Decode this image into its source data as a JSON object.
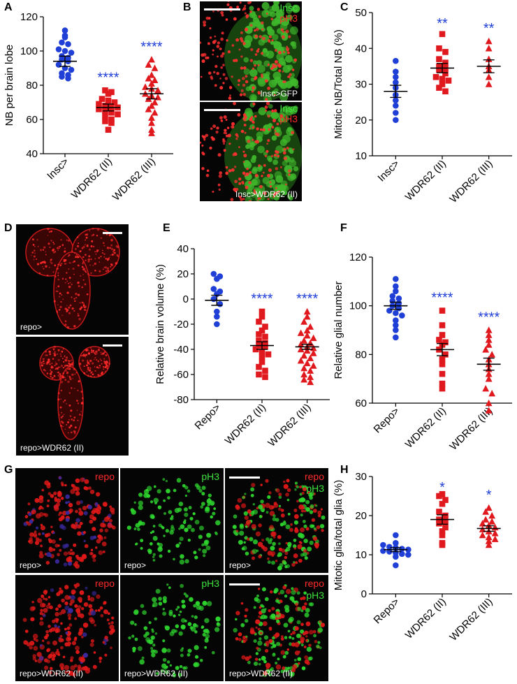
{
  "panel_letters": {
    "A": "A",
    "B": "B",
    "C": "C",
    "D": "D",
    "E": "E",
    "F": "F",
    "G": "G",
    "H": "H"
  },
  "colors": {
    "blue": "#1f3fd6",
    "red": "#e0191e",
    "star": "#1f3fd6",
    "green_label": "#3fe23f",
    "red_label": "#ff2a2a"
  },
  "micro": {
    "B": {
      "top_green": "Insc",
      "top_red": "pH3",
      "top_caption": "Insc>GFP",
      "bottom_green": "Insc",
      "bottom_red": "pH3",
      "bottom_caption": "Insc>WDR62 (II)"
    },
    "D": {
      "top_caption": "repo>",
      "bottom_caption": "repo>WDR62 (II)"
    },
    "G": {
      "row1": [
        {
          "label": "repo",
          "caption": "repo>"
        },
        {
          "label": "pH3",
          "caption": "repo>"
        },
        {
          "label1": "repo",
          "label2": "pH3",
          "caption": "repo>"
        }
      ],
      "row2": [
        {
          "label": "repo",
          "caption": "repo>WDR62 (II)"
        },
        {
          "label": "pH3",
          "caption": "repo>WDR62 (II)"
        },
        {
          "label1": "repo",
          "label2": "pH3",
          "caption": "repo>WDR62 (II)"
        }
      ]
    }
  },
  "chart_data": [
    {
      "id": "A",
      "type": "scatter",
      "ylabel": "NB per brain lobe",
      "ylim": [
        40,
        120
      ],
      "yticks": [
        40,
        60,
        80,
        100,
        120
      ],
      "categories": [
        "Insc>",
        "WDR62 (II)",
        "WDR62 (III)"
      ],
      "series": [
        {
          "name": "Insc>",
          "marker": "circle",
          "color": "blue",
          "mean": 94,
          "sem": 3,
          "sig": "",
          "values": [
            112,
            109,
            108,
            105,
            104,
            101,
            100,
            99,
            97,
            96,
            95,
            94,
            92,
            90,
            89,
            87,
            86,
            85,
            84
          ]
        },
        {
          "name": "WDR62 (II)",
          "marker": "square",
          "color": "red",
          "mean": 67,
          "sem": 2,
          "sig": "****",
          "values": [
            77,
            76,
            75,
            72,
            71,
            70,
            69,
            68,
            67,
            67,
            66,
            65,
            64,
            63,
            62,
            60,
            59,
            58,
            54
          ]
        },
        {
          "name": "WDR62 (III)",
          "marker": "triangle",
          "color": "red",
          "mean": 75,
          "sem": 3,
          "sig": "****",
          "values": [
            95,
            92,
            90,
            86,
            84,
            83,
            81,
            79,
            78,
            77,
            75,
            74,
            73,
            72,
            70,
            68,
            66,
            64,
            61,
            58,
            54,
            52
          ]
        }
      ]
    },
    {
      "id": "C",
      "type": "scatter",
      "ylabel": "Mitotic NB/Total NB (%)",
      "ylim": [
        10,
        50
      ],
      "yticks": [
        10,
        20,
        30,
        40,
        50
      ],
      "categories": [
        "Insc>",
        "WDR62 (II)",
        "WDR62 (III)"
      ],
      "series": [
        {
          "name": "Insc>",
          "marker": "circle",
          "color": "blue",
          "mean": 28,
          "sem": 1.7,
          "sig": "",
          "values": [
            36.5,
            33.5,
            32,
            30.5,
            29,
            27,
            25.5,
            24,
            22,
            20
          ]
        },
        {
          "name": "WDR62 (II)",
          "marker": "square",
          "color": "red",
          "mean": 34.5,
          "sem": 1.3,
          "sig": "**",
          "values": [
            44,
            40,
            39,
            37,
            36,
            35,
            34.5,
            34,
            33,
            32,
            31.5,
            31,
            30,
            29,
            28
          ]
        },
        {
          "name": "WDR62 (III)",
          "marker": "triangle",
          "color": "red",
          "mean": 35,
          "sem": 1.8,
          "sig": "**",
          "values": [
            42,
            40,
            37,
            35,
            34,
            32,
            30
          ]
        }
      ]
    },
    {
      "id": "E",
      "type": "scatter",
      "ylabel": "Relative brain volume (%)",
      "ylim": [
        -80,
        40
      ],
      "yticks": [
        -80,
        -60,
        -40,
        -20,
        0,
        20,
        40
      ],
      "categories": [
        "Repo>",
        "WDR62 (II)",
        "WDR62 (III)"
      ],
      "series": [
        {
          "name": "Repo>",
          "marker": "circle",
          "color": "blue",
          "mean": -1,
          "sem": 4,
          "sig": "",
          "values": [
            20,
            18,
            16,
            8,
            6,
            4,
            0,
            -4,
            -10,
            -14,
            -20
          ]
        },
        {
          "name": "WDR62 (II)",
          "marker": "square",
          "color": "red",
          "mean": -37,
          "sem": 3,
          "sig": "****",
          "values": [
            -10,
            -14,
            -18,
            -22,
            -25,
            -28,
            -30,
            -33,
            -35,
            -37,
            -38,
            -40,
            -42,
            -44,
            -46,
            -50,
            -54,
            -57,
            -60,
            -62
          ]
        },
        {
          "name": "WDR62 (III)",
          "marker": "triangle",
          "color": "red",
          "mean": -38,
          "sem": 2,
          "sig": "****",
          "values": [
            -10,
            -14,
            -18,
            -22,
            -25,
            -27,
            -29,
            -31,
            -33,
            -35,
            -36,
            -38,
            -39,
            -40,
            -41,
            -43,
            -45,
            -47,
            -49,
            -51,
            -53,
            -55,
            -57,
            -60,
            -62,
            -64,
            -66
          ]
        }
      ]
    },
    {
      "id": "F",
      "type": "scatter",
      "ylabel": "Relative glial number",
      "ylim": [
        60,
        120
      ],
      "yticks": [
        60,
        80,
        100,
        120
      ],
      "categories": [
        "Repo>",
        "WDR62 (II)",
        "WDR62 (III)"
      ],
      "series": [
        {
          "name": "Repo>",
          "marker": "circle",
          "color": "blue",
          "mean": 100,
          "sem": 1.5,
          "sig": "",
          "values": [
            111,
            108,
            106,
            104,
            103,
            102,
            101,
            100,
            99,
            98,
            97,
            96,
            94,
            92,
            90,
            87
          ]
        },
        {
          "name": "WDR62 (II)",
          "marker": "square",
          "color": "red",
          "mean": 82,
          "sem": 2.5,
          "sig": "****",
          "values": [
            98,
            92,
            88,
            86,
            85,
            84,
            82,
            80,
            78,
            76,
            72,
            68,
            66
          ]
        },
        {
          "name": "WDR62 (III)",
          "marker": "triangle",
          "color": "red",
          "mean": 76,
          "sem": 2.5,
          "sig": "****",
          "values": [
            90,
            88,
            86,
            84,
            82,
            80,
            78,
            76,
            74,
            72,
            70,
            66,
            64,
            60,
            57
          ]
        }
      ]
    },
    {
      "id": "H",
      "type": "scatter",
      "ylabel": "Mitotic glia/total glia (%)",
      "ylim": [
        0,
        30
      ],
      "yticks": [
        0,
        10,
        20,
        30
      ],
      "categories": [
        "Repo>",
        "WDR62 (II)",
        "WDR62 (III)"
      ],
      "series": [
        {
          "name": "Repo>",
          "marker": "circle",
          "color": "blue",
          "mean": 11.3,
          "sem": 0.5,
          "sig": "",
          "values": [
            15,
            13,
            12.5,
            12,
            11.8,
            11.5,
            11.3,
            11,
            10.8,
            10.5,
            10.2,
            10,
            9.5,
            7.3
          ]
        },
        {
          "name": "WDR62 (II)",
          "marker": "square",
          "color": "red",
          "mean": 19,
          "sem": 1.2,
          "sig": "*",
          "values": [
            25.5,
            25,
            24,
            23,
            21,
            20,
            19,
            18.5,
            18,
            17,
            16,
            15,
            13,
            12.5
          ]
        },
        {
          "name": "WDR62 (III)",
          "marker": "triangle",
          "color": "red",
          "mean": 16.7,
          "sem": 0.7,
          "sig": "*",
          "values": [
            22,
            21,
            20,
            19,
            18.5,
            18,
            17.5,
            17,
            16.5,
            16,
            15.5,
            15,
            14.5,
            14,
            13.5,
            12.5
          ]
        }
      ]
    }
  ]
}
